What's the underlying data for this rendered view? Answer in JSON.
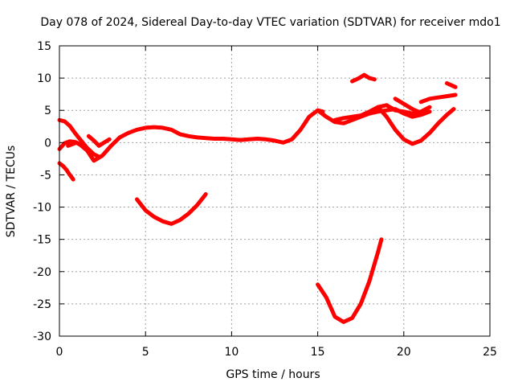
{
  "chart_data": {
    "type": "line",
    "title": "Day 078 of 2024, Sidereal Day-to-day VTEC variation (SDTVAR) for receiver mdo1",
    "xlabel": "GPS time / hours",
    "ylabel": "SDTVAR / TECUs",
    "xlim": [
      0,
      25
    ],
    "ylim": [
      -30,
      15
    ],
    "xticks": [
      0,
      5,
      10,
      15,
      20,
      25
    ],
    "yticks": [
      -30,
      -25,
      -20,
      -15,
      -10,
      -5,
      0,
      5,
      10,
      15
    ],
    "xtick_labels": [
      "0",
      "5",
      "10",
      "15",
      "20",
      "25"
    ],
    "ytick_labels": [
      "-30",
      "-25",
      "-20",
      "-15",
      "-10",
      "-5",
      "0",
      "5",
      "10",
      "15"
    ],
    "grid": true,
    "color": "#ff0000",
    "series": [
      {
        "name": "upper-left arc",
        "x": [
          0.0,
          0.3,
          0.6,
          0.9,
          1.2,
          1.6,
          2.0,
          2.3
        ],
        "y": [
          3.5,
          3.3,
          2.6,
          1.5,
          0.5,
          -0.8,
          -1.8,
          -2.2
        ]
      },
      {
        "name": "mid-left arc",
        "x": [
          0.0,
          0.3,
          0.6,
          0.9,
          1.2,
          1.5,
          1.8
        ],
        "y": [
          -1.0,
          -0.1,
          0.2,
          0.1,
          -0.3,
          -1.0,
          -1.6
        ]
      },
      {
        "name": "low-left arc",
        "x": [
          0.0,
          0.2,
          0.4,
          0.6,
          0.8
        ],
        "y": [
          -3.2,
          -3.6,
          -4.2,
          -5.0,
          -5.7
        ]
      },
      {
        "name": "main daytime",
        "x": [
          0.5,
          1.0,
          1.5,
          2.0,
          2.5,
          3.0,
          3.5,
          4.0,
          4.5,
          5.0,
          5.5,
          6.0,
          6.5,
          7.0,
          7.5,
          8.0,
          8.5,
          9.0,
          9.5,
          10.0,
          10.5,
          11.0,
          11.5,
          12.0,
          12.5,
          13.0,
          13.5,
          14.0,
          14.5,
          15.0,
          15.3
        ],
        "y": [
          -0.5,
          0.0,
          -0.8,
          -2.8,
          -2.0,
          -0.5,
          0.8,
          1.5,
          2.0,
          2.3,
          2.4,
          2.3,
          2.0,
          1.3,
          1.0,
          0.8,
          0.7,
          0.6,
          0.6,
          0.5,
          0.4,
          0.5,
          0.6,
          0.5,
          0.3,
          0.0,
          0.5,
          2.0,
          4.0,
          5.0,
          4.8
        ]
      },
      {
        "name": "small wiggle",
        "x": [
          1.7,
          2.0,
          2.3,
          2.6,
          2.9
        ],
        "y": [
          1.0,
          0.3,
          -0.5,
          0.0,
          0.5
        ]
      },
      {
        "name": "afternoon rise",
        "x": [
          15.0,
          15.5,
          16.0,
          16.5,
          17.0,
          17.5,
          18.0,
          18.5,
          19.0,
          19.5,
          20.0,
          20.5,
          21.0,
          21.5
        ],
        "y": [
          5.0,
          4.0,
          3.2,
          3.0,
          3.5,
          4.0,
          4.5,
          4.8,
          5.0,
          5.2,
          4.5,
          4.0,
          4.3,
          4.8
        ]
      },
      {
        "name": "evening branch",
        "x": [
          16.0,
          16.5,
          17.0,
          17.5,
          18.0,
          18.5,
          19.0,
          19.5,
          20.0,
          20.5,
          21.0,
          21.5
        ],
        "y": [
          3.5,
          3.8,
          4.0,
          4.2,
          4.8,
          5.5,
          5.8,
          5.0,
          4.8,
          4.5,
          4.8,
          5.5
        ]
      },
      {
        "name": "dip arc",
        "x": [
          18.5,
          19.0,
          19.5,
          20.0,
          20.5,
          21.0,
          21.5,
          22.0,
          22.5,
          22.9
        ],
        "y": [
          5.5,
          4.0,
          2.0,
          0.5,
          -0.2,
          0.3,
          1.5,
          3.0,
          4.3,
          5.2
        ]
      },
      {
        "name": "upper right branch",
        "x": [
          19.5,
          20.0,
          20.5,
          21.0
        ],
        "y": [
          6.8,
          6.0,
          5.2,
          4.6
        ]
      },
      {
        "name": "right upper",
        "x": [
          21.0,
          21.5,
          22.0,
          22.5,
          23.0
        ],
        "y": [
          6.3,
          6.8,
          7.0,
          7.2,
          7.4
        ]
      },
      {
        "name": "far right",
        "x": [
          22.5,
          23.0
        ],
        "y": [
          9.2,
          8.6
        ]
      },
      {
        "name": "isolated high",
        "x": [
          17.0,
          17.4,
          17.7,
          18.0,
          18.3
        ],
        "y": [
          9.5,
          10.0,
          10.5,
          10.0,
          9.8
        ]
      },
      {
        "name": "trough morning",
        "x": [
          4.5,
          5.0,
          5.5,
          6.0,
          6.5,
          7.0,
          7.5,
          8.0,
          8.5
        ],
        "y": [
          -8.8,
          -10.5,
          -11.5,
          -12.2,
          -12.6,
          -12.0,
          -11.0,
          -9.7,
          -8.0
        ]
      },
      {
        "name": "trough afternoon",
        "x": [
          15.0,
          15.5,
          16.0,
          16.5,
          17.0,
          17.5,
          18.0,
          18.5,
          18.7
        ],
        "y": [
          -22.0,
          -24.0,
          -27.0,
          -27.8,
          -27.2,
          -25.0,
          -21.5,
          -17.0,
          -15.0
        ]
      }
    ]
  }
}
